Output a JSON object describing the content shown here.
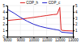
{
  "chart_data": {
    "type": "line",
    "x": [
      8000,
      8500,
      9000,
      9500,
      10000,
      10500,
      11000,
      11500,
      11800,
      12000,
      12100,
      12200,
      12500,
      13000
    ],
    "series": [
      {
        "name": "COP_h",
        "color": "#dd2222",
        "values": [
          2.6,
          2.7,
          2.8,
          2.95,
          3.1,
          3.25,
          3.4,
          3.55,
          3.6,
          4.7,
          1.1,
          1.0,
          0.95,
          0.9
        ]
      },
      {
        "name": "COP_c",
        "color": "#2222cc",
        "values": [
          4.4,
          3.8,
          3.1,
          2.5,
          2.0,
          1.65,
          1.4,
          1.2,
          1.1,
          1.0,
          0.75,
          0.7,
          0.65,
          0.55
        ]
      }
    ],
    "xlim": [
      8000,
      13000
    ],
    "xticks": [
      8000,
      9000,
      10000,
      11000,
      12000,
      13000
    ],
    "ylim": [
      0,
      5
    ],
    "yticks": [
      0,
      1,
      2,
      3,
      4,
      5
    ],
    "y2lim": [
      0,
      5
    ],
    "y2ticks": [
      1,
      2,
      3,
      4,
      5
    ],
    "grid": true,
    "legend": "top"
  }
}
